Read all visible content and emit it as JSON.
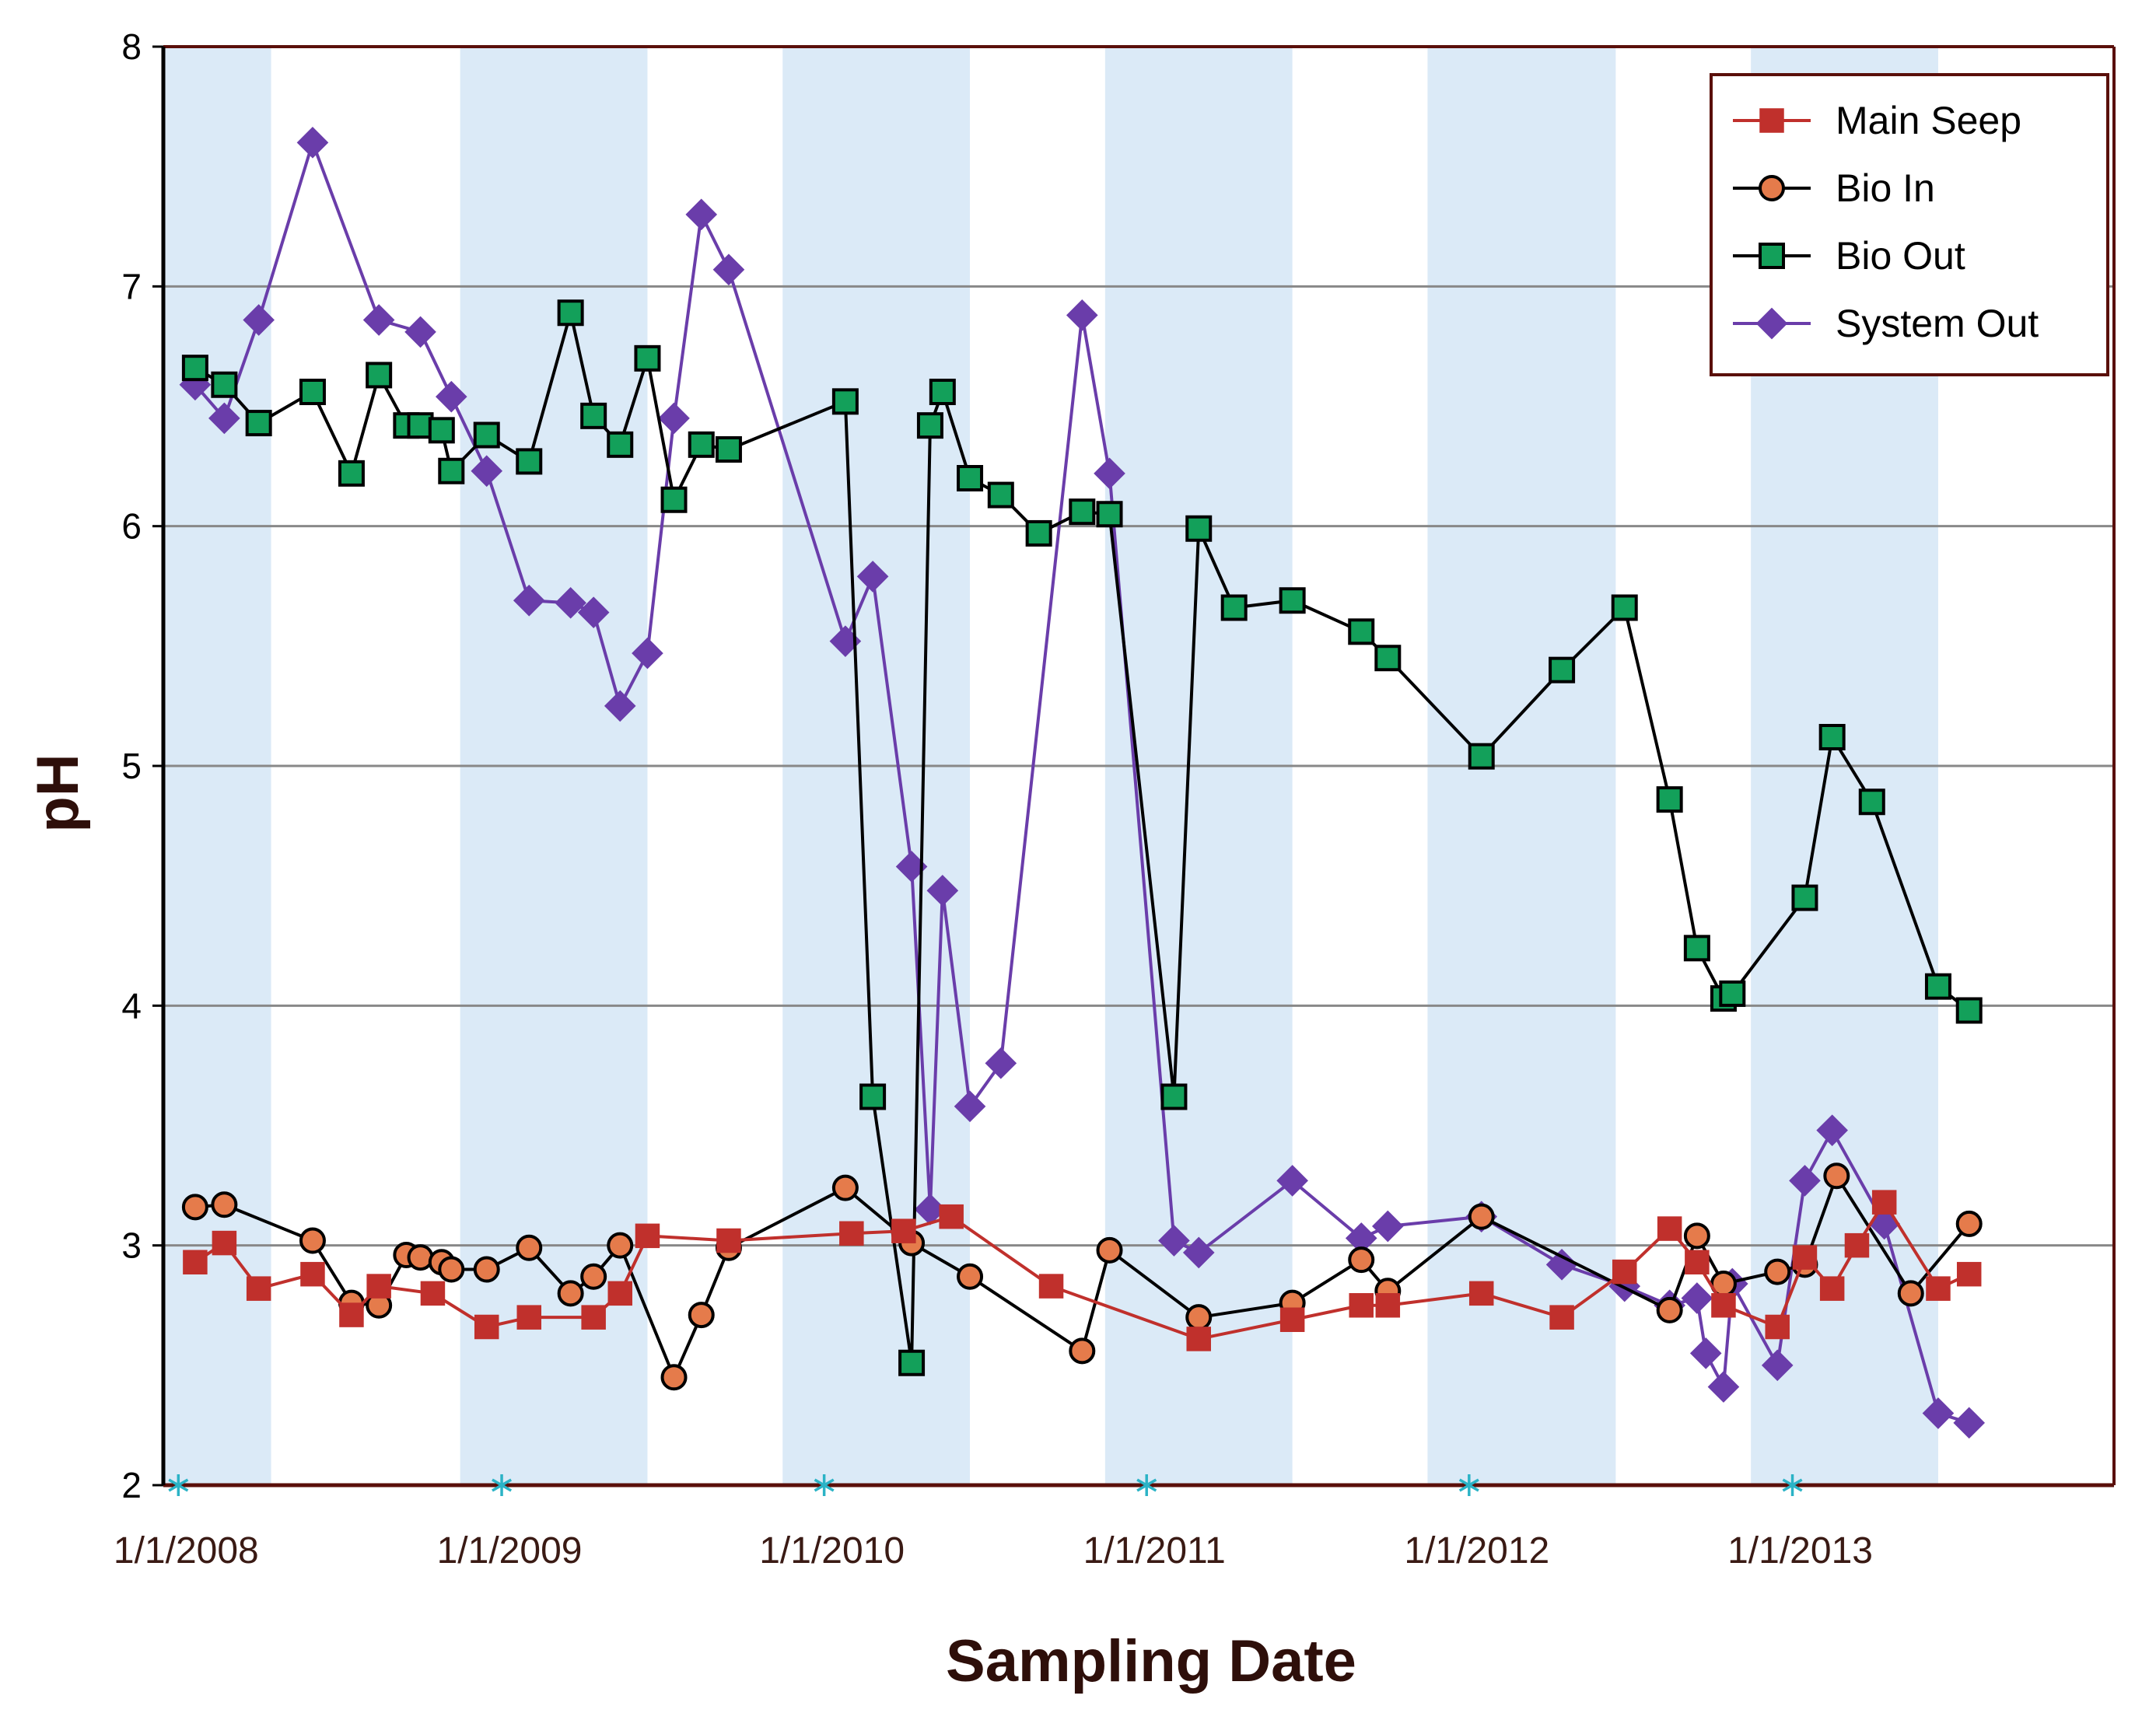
{
  "chart_data": {
    "type": "line",
    "title": "",
    "xlabel": "Sampling Date",
    "ylabel": "pH",
    "ylim": [
      2,
      8
    ],
    "yticks": [
      "2",
      "3",
      "4",
      "5",
      "6",
      "7",
      "8"
    ],
    "xlim": [
      "2007-12-15",
      "2013-12-31"
    ],
    "xticks": [
      "1/1/2008",
      "1/1/2009",
      "1/1/2010",
      "1/1/2011",
      "1/1/2012",
      "1/1/2013"
    ],
    "xtick_dates": [
      "2008-01-01",
      "2009-01-01",
      "2010-01-01",
      "2011-01-01",
      "2012-01-01",
      "2013-01-01"
    ],
    "grid": "horizontal",
    "shaded_bands": [
      [
        "2007-12-15",
        "2008-04-15"
      ],
      [
        "2008-11-15",
        "2009-06-15"
      ],
      [
        "2009-11-15",
        "2010-06-15"
      ],
      [
        "2010-11-15",
        "2011-06-15"
      ],
      [
        "2011-11-15",
        "2012-06-15"
      ],
      [
        "2012-11-15",
        "2013-06-15"
      ]
    ],
    "legend_position": "top-right",
    "colors": {
      "band": "#dbeaf7",
      "grid": "#888888",
      "axis": "#000000",
      "frame": "#5a0f0a",
      "tick_marker": "#2bb3c6"
    },
    "series": [
      {
        "name": "Main Seep",
        "marker": "square",
        "color": "#c0302c",
        "fill": "#c0302c",
        "points": [
          [
            "2008-01-20",
            2.93
          ],
          [
            "2008-02-22",
            3.01
          ],
          [
            "2008-04-01",
            2.82
          ],
          [
            "2008-06-01",
            2.88
          ],
          [
            "2008-07-15",
            2.71
          ],
          [
            "2008-08-15",
            2.83
          ],
          [
            "2008-10-15",
            2.8
          ],
          [
            "2008-12-15",
            2.66
          ],
          [
            "2009-02-01",
            2.7
          ],
          [
            "2009-04-15",
            2.7
          ],
          [
            "2009-05-15",
            2.8
          ],
          [
            "2009-06-15",
            3.04
          ],
          [
            "2009-09-15",
            3.02
          ],
          [
            "2010-02-01",
            3.05
          ],
          [
            "2010-04-01",
            3.06
          ],
          [
            "2010-05-25",
            3.12
          ],
          [
            "2010-09-15",
            2.83
          ],
          [
            "2011-03-01",
            2.61
          ],
          [
            "2011-06-15",
            2.69
          ],
          [
            "2011-09-01",
            2.75
          ],
          [
            "2011-10-01",
            2.75
          ],
          [
            "2012-01-15",
            2.8
          ],
          [
            "2012-04-15",
            2.7
          ],
          [
            "2012-06-25",
            2.89
          ],
          [
            "2012-08-15",
            3.07
          ],
          [
            "2012-09-15",
            2.93
          ],
          [
            "2012-10-15",
            2.75
          ],
          [
            "2012-12-15",
            2.66
          ],
          [
            "2013-01-15",
            2.95
          ],
          [
            "2013-02-15",
            2.82
          ],
          [
            "2013-03-15",
            3.0
          ],
          [
            "2013-04-15",
            3.18
          ],
          [
            "2013-06-15",
            2.82
          ],
          [
            "2013-07-20",
            2.88
          ]
        ]
      },
      {
        "name": "Bio In",
        "marker": "circle",
        "color": "#000000",
        "fill": "#e57b4b",
        "points": [
          [
            "2008-01-20",
            3.16
          ],
          [
            "2008-02-22",
            3.17
          ],
          [
            "2008-06-01",
            3.02
          ],
          [
            "2008-07-15",
            2.76
          ],
          [
            "2008-08-15",
            2.75
          ],
          [
            "2008-09-15",
            2.96
          ],
          [
            "2008-10-01",
            2.95
          ],
          [
            "2008-10-25",
            2.93
          ],
          [
            "2008-11-05",
            2.9
          ],
          [
            "2008-12-15",
            2.9
          ],
          [
            "2009-02-01",
            2.99
          ],
          [
            "2009-03-20",
            2.8
          ],
          [
            "2009-04-15",
            2.87
          ],
          [
            "2009-05-15",
            3.0
          ],
          [
            "2009-07-15",
            2.45
          ],
          [
            "2009-08-15",
            2.71
          ],
          [
            "2009-09-15",
            2.99
          ],
          [
            "2010-01-25",
            3.24
          ],
          [
            "2010-04-10",
            3.01
          ],
          [
            "2010-06-15",
            2.87
          ],
          [
            "2010-10-20",
            2.56
          ],
          [
            "2010-11-20",
            2.98
          ],
          [
            "2011-03-01",
            2.7
          ],
          [
            "2011-06-15",
            2.76
          ],
          [
            "2011-09-01",
            2.94
          ],
          [
            "2011-10-01",
            2.81
          ],
          [
            "2012-01-15",
            3.12
          ],
          [
            "2012-08-15",
            2.73
          ],
          [
            "2012-09-15",
            3.04
          ],
          [
            "2012-10-15",
            2.84
          ],
          [
            "2012-12-15",
            2.89
          ],
          [
            "2013-01-15",
            2.92
          ],
          [
            "2013-02-20",
            3.29
          ],
          [
            "2013-05-15",
            2.8
          ],
          [
            "2013-07-20",
            3.09
          ]
        ]
      },
      {
        "name": "Bio Out",
        "marker": "square",
        "color": "#000000",
        "fill": "#13a05a",
        "points": [
          [
            "2008-01-20",
            6.66
          ],
          [
            "2008-02-22",
            6.59
          ],
          [
            "2008-04-01",
            6.43
          ],
          [
            "2008-06-01",
            6.56
          ],
          [
            "2008-07-15",
            6.22
          ],
          [
            "2008-08-15",
            6.63
          ],
          [
            "2008-09-15",
            6.42
          ],
          [
            "2008-10-01",
            6.42
          ],
          [
            "2008-10-25",
            6.4
          ],
          [
            "2008-11-05",
            6.23
          ],
          [
            "2008-12-15",
            6.38
          ],
          [
            "2009-02-01",
            6.27
          ],
          [
            "2009-03-20",
            6.89
          ],
          [
            "2009-04-15",
            6.46
          ],
          [
            "2009-05-15",
            6.34
          ],
          [
            "2009-06-15",
            6.7
          ],
          [
            "2009-07-15",
            6.11
          ],
          [
            "2009-08-15",
            6.34
          ],
          [
            "2009-09-15",
            6.32
          ],
          [
            "2010-01-25",
            6.52
          ],
          [
            "2010-02-25",
            3.62
          ],
          [
            "2010-04-10",
            2.51
          ],
          [
            "2010-05-01",
            6.42
          ],
          [
            "2010-05-15",
            6.56
          ],
          [
            "2010-06-15",
            6.2
          ],
          [
            "2010-07-20",
            6.13
          ],
          [
            "2010-09-01",
            5.97
          ],
          [
            "2010-10-20",
            6.06
          ],
          [
            "2010-11-20",
            6.05
          ],
          [
            "2011-02-01",
            3.62
          ],
          [
            "2011-03-01",
            5.99
          ],
          [
            "2011-04-10",
            5.66
          ],
          [
            "2011-06-15",
            5.69
          ],
          [
            "2011-09-01",
            5.56
          ],
          [
            "2011-10-01",
            5.45
          ],
          [
            "2012-01-15",
            5.04
          ],
          [
            "2012-04-15",
            5.4
          ],
          [
            "2012-06-25",
            5.66
          ],
          [
            "2012-08-15",
            4.86
          ],
          [
            "2012-09-15",
            4.24
          ],
          [
            "2012-10-15",
            4.03
          ],
          [
            "2012-10-25",
            4.05
          ],
          [
            "2013-01-15",
            4.45
          ],
          [
            "2013-02-15",
            5.12
          ],
          [
            "2013-04-01",
            4.85
          ],
          [
            "2013-06-15",
            4.08
          ],
          [
            "2013-07-20",
            3.98
          ]
        ]
      },
      {
        "name": "System Out",
        "marker": "diamond",
        "color": "#6a3daa",
        "fill": "#6a3daa",
        "points": [
          [
            "2008-01-20",
            6.59
          ],
          [
            "2008-02-22",
            6.45
          ],
          [
            "2008-04-01",
            6.86
          ],
          [
            "2008-06-01",
            7.6
          ],
          [
            "2008-08-15",
            6.86
          ],
          [
            "2008-10-01",
            6.81
          ],
          [
            "2008-11-05",
            6.54
          ],
          [
            "2008-12-15",
            6.23
          ],
          [
            "2009-02-01",
            5.69
          ],
          [
            "2009-03-20",
            5.68
          ],
          [
            "2009-04-15",
            5.64
          ],
          [
            "2009-05-15",
            5.25
          ],
          [
            "2009-06-15",
            5.47
          ],
          [
            "2009-07-15",
            6.45
          ],
          [
            "2009-08-15",
            7.3
          ],
          [
            "2009-09-15",
            7.07
          ],
          [
            "2010-01-25",
            5.52
          ],
          [
            "2010-02-25",
            5.79
          ],
          [
            "2010-04-10",
            4.58
          ],
          [
            "2010-05-01",
            3.15
          ],
          [
            "2010-05-15",
            4.48
          ],
          [
            "2010-06-15",
            3.58
          ],
          [
            "2010-07-20",
            3.76
          ],
          [
            "2010-10-20",
            6.88
          ],
          [
            "2010-11-20",
            6.22
          ],
          [
            "2011-02-01",
            3.02
          ],
          [
            "2011-03-01",
            2.97
          ],
          [
            "2011-06-15",
            3.27
          ],
          [
            "2011-09-01",
            3.03
          ],
          [
            "2011-10-01",
            3.08
          ],
          [
            "2012-01-15",
            3.12
          ],
          [
            "2012-04-15",
            2.92
          ],
          [
            "2012-06-25",
            2.83
          ],
          [
            "2012-08-15",
            2.75
          ],
          [
            "2012-09-15",
            2.78
          ],
          [
            "2012-09-25",
            2.55
          ],
          [
            "2012-10-15",
            2.41
          ],
          [
            "2012-10-25",
            2.84
          ],
          [
            "2012-12-15",
            2.5
          ],
          [
            "2013-01-15",
            3.27
          ],
          [
            "2013-02-15",
            3.48
          ],
          [
            "2013-04-15",
            3.09
          ],
          [
            "2013-06-15",
            2.3
          ],
          [
            "2013-07-20",
            2.26
          ]
        ]
      }
    ]
  }
}
